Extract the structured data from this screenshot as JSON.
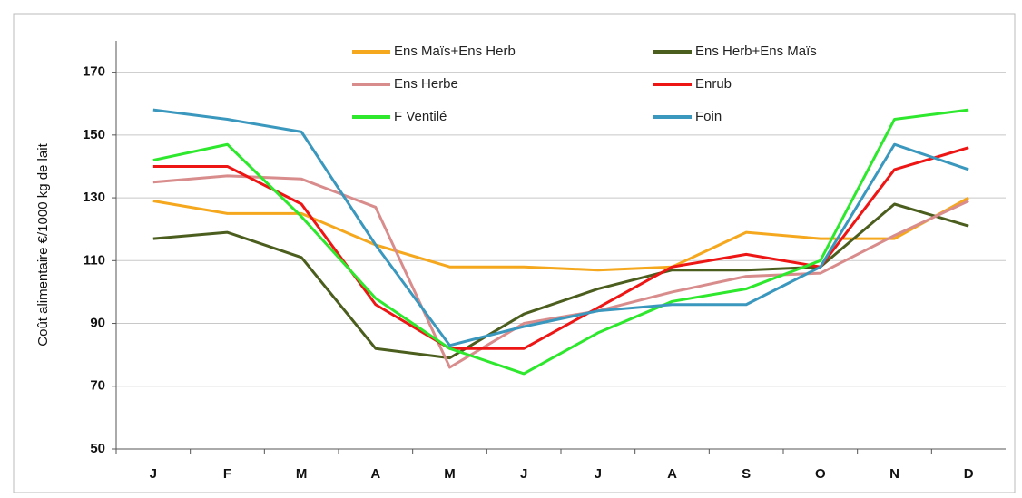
{
  "chart_data": {
    "type": "line",
    "y_label": "Coût alimentaire €/1000 kg de lait",
    "categories": [
      "J",
      "F",
      "M",
      "A",
      "M",
      "J",
      "J",
      "A",
      "S",
      "O",
      "N",
      "D"
    ],
    "series": [
      {
        "name": "Ens Maïs+Ens Herb",
        "color": "#f5a81e",
        "values": [
          129,
          125,
          125,
          115,
          108,
          108,
          107,
          108,
          119,
          117,
          117,
          130
        ]
      },
      {
        "name": "Ens Herb+Ens Maïs",
        "color": "#4b5e1e",
        "values": [
          117,
          119,
          111,
          82,
          79,
          93,
          101,
          107,
          107,
          108,
          128,
          121
        ]
      },
      {
        "name": "Ens Herbe",
        "color": "#d98c8c",
        "values": [
          135,
          137,
          136,
          127,
          76,
          90,
          94,
          100,
          105,
          106,
          118,
          129
        ]
      },
      {
        "name": "Enrub",
        "color": "#ee1515",
        "values": [
          140,
          140,
          128,
          96,
          82,
          82,
          95,
          108,
          112,
          108,
          139,
          146
        ]
      },
      {
        "name": "F Ventilé",
        "color": "#2de82d",
        "values": [
          142,
          147,
          124,
          98,
          82,
          74,
          87,
          97,
          101,
          110,
          155,
          158
        ]
      },
      {
        "name": "Foin",
        "color": "#3a97bd",
        "values": [
          158,
          155,
          151,
          115,
          83,
          89,
          94,
          96,
          96,
          108,
          147,
          139
        ]
      }
    ],
    "ylim": [
      50,
      180
    ],
    "yticks": [
      50,
      70,
      90,
      110,
      130,
      150,
      170
    ],
    "grid": true,
    "legend": "top"
  }
}
